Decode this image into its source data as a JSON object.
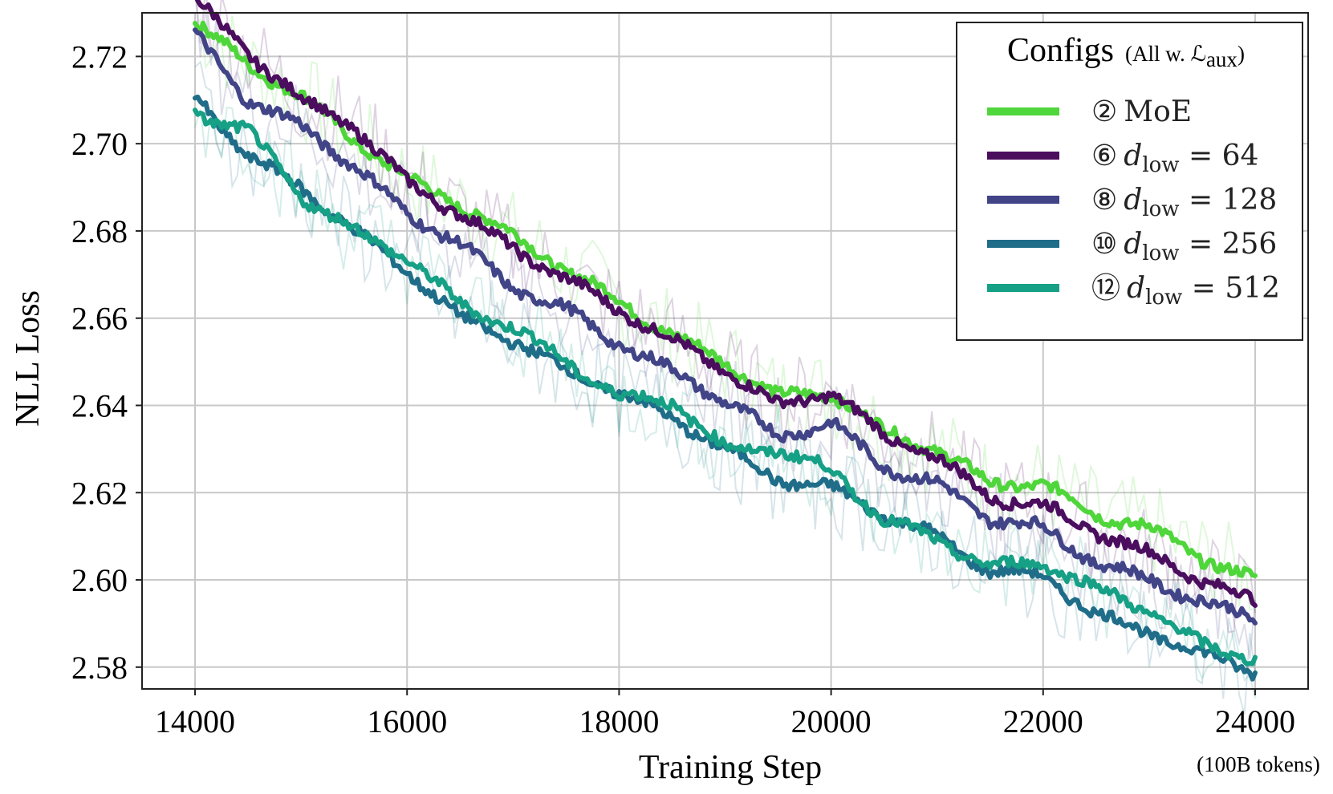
{
  "chart_data": {
    "type": "line",
    "title": "",
    "xlabel": "Training Step",
    "xlabel_note": "(100B tokens)",
    "ylabel": "NLL Loss",
    "xlim": [
      13500,
      24500
    ],
    "ylim": [
      2.575,
      2.73
    ],
    "xticks": [
      14000,
      16000,
      18000,
      20000,
      22000,
      24000
    ],
    "xtick_labels": [
      "14000",
      "16000",
      "18000",
      "20000",
      "22000",
      "24000"
    ],
    "yticks": [
      2.58,
      2.6,
      2.62,
      2.64,
      2.66,
      2.68,
      2.7,
      2.72
    ],
    "ytick_labels": [
      "2.58",
      "2.60",
      "2.62",
      "2.64",
      "2.66",
      "2.68",
      "2.70",
      "2.72"
    ],
    "grid": true,
    "legend": {
      "placement": "top-right",
      "title": "Configs",
      "title_note": "(All w. ℒaux)",
      "title_note_main": "(All w. ℒ",
      "title_note_sub": "aux",
      "title_note_end": ")"
    },
    "x": [
      14000,
      14500,
      15000,
      15500,
      16000,
      16500,
      17000,
      17500,
      18000,
      18500,
      19000,
      19500,
      20000,
      20500,
      21000,
      21500,
      22000,
      22500,
      23000,
      23500,
      24000
    ],
    "series": [
      {
        "name": "② MoE",
        "marker": "②",
        "label_main": "MoE",
        "label_sub": "",
        "label_rest": "",
        "color": "#4fd63a",
        "values": [
          2.728,
          2.718,
          2.711,
          2.701,
          2.692,
          2.686,
          2.679,
          2.671,
          2.664,
          2.656,
          2.65,
          2.642,
          2.643,
          2.634,
          2.63,
          2.622,
          2.622,
          2.615,
          2.612,
          2.605,
          2.6
        ]
      },
      {
        "name": "⑥ dlow = 64",
        "marker": "⑥",
        "label_main": "d",
        "label_sub": "low",
        "label_rest": " = 64",
        "color": "#4b0d5e",
        "values": [
          2.733,
          2.721,
          2.71,
          2.704,
          2.691,
          2.684,
          2.676,
          2.669,
          2.662,
          2.655,
          2.648,
          2.64,
          2.643,
          2.633,
          2.628,
          2.619,
          2.617,
          2.611,
          2.606,
          2.6,
          2.595
        ]
      },
      {
        "name": "⑧ dlow = 128",
        "marker": "⑧",
        "label_main": "d",
        "label_sub": "low",
        "label_rest": " = 128",
        "color": "#414487",
        "values": [
          2.725,
          2.71,
          2.704,
          2.695,
          2.684,
          2.677,
          2.667,
          2.662,
          2.654,
          2.648,
          2.641,
          2.633,
          2.636,
          2.626,
          2.622,
          2.614,
          2.612,
          2.604,
          2.6,
          2.595,
          2.591
        ]
      },
      {
        "name": "⑩ dlow = 256",
        "marker": "⑩",
        "label_main": "d",
        "label_sub": "low",
        "label_rest": " = 256",
        "color": "#1f6d89",
        "values": [
          2.711,
          2.697,
          2.69,
          2.68,
          2.671,
          2.66,
          2.655,
          2.648,
          2.643,
          2.637,
          2.63,
          2.623,
          2.621,
          2.615,
          2.61,
          2.602,
          2.601,
          2.592,
          2.588,
          2.583,
          2.579
        ]
      },
      {
        "name": "⑫ dlow = 512",
        "marker": "⑫",
        "label_main": "d",
        "label_sub": "low",
        "label_rest": " = 512",
        "color": "#16a085",
        "values": [
          2.707,
          2.703,
          2.688,
          2.68,
          2.674,
          2.663,
          2.658,
          2.65,
          2.642,
          2.641,
          2.63,
          2.63,
          2.625,
          2.614,
          2.609,
          2.603,
          2.604,
          2.598,
          2.593,
          2.585,
          2.582
        ]
      }
    ]
  }
}
